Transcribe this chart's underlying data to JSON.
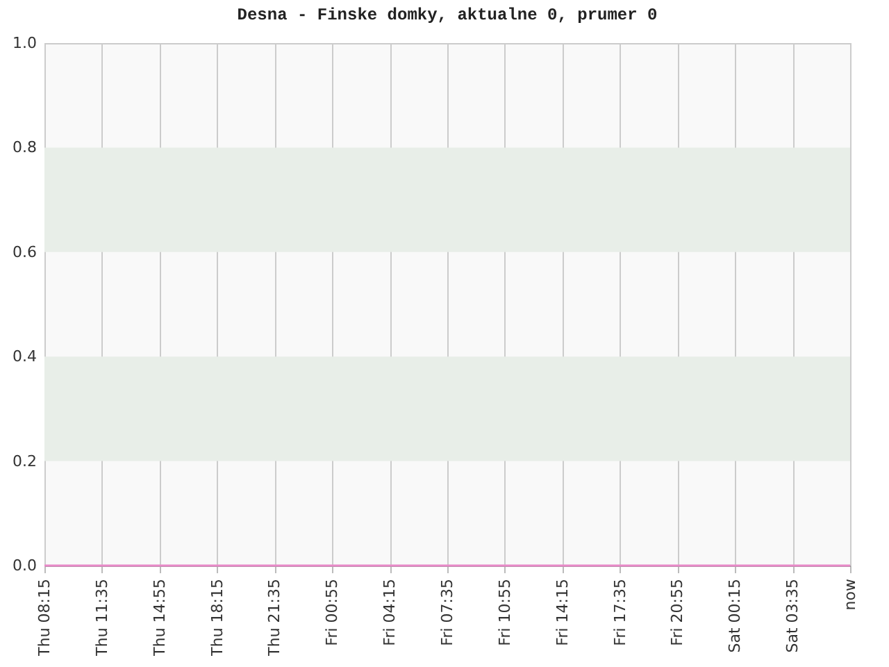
{
  "chart_data": {
    "type": "line",
    "title": "Desna - Finske domky, aktualne 0, prumer 0",
    "categories": [
      "Thu 08:15",
      "Thu 11:35",
      "Thu 14:55",
      "Thu 18:15",
      "Thu 21:35",
      "Fri 00:55",
      "Fri 04:15",
      "Fri 07:35",
      "Fri 10:55",
      "Fri 14:15",
      "Fri 17:35",
      "Fri 20:55",
      "Sat 00:15",
      "Sat 03:35",
      "now"
    ],
    "series": [
      {
        "color": "#e889c8",
        "values": [
          0,
          0,
          0,
          0,
          0,
          0,
          0,
          0,
          0,
          0,
          0,
          0,
          0,
          0,
          0
        ]
      }
    ],
    "ylim": [
      0,
      1
    ],
    "yticks": [
      {
        "value": 0,
        "label": "0.0"
      },
      {
        "value": 0.2,
        "label": "0.2"
      },
      {
        "value": 0.4,
        "label": "0.4"
      },
      {
        "value": 0.6,
        "label": "0.6"
      },
      {
        "value": 0.8,
        "label": "0.8"
      },
      {
        "value": 1,
        "label": "1.0"
      }
    ],
    "bands": [
      {
        "axis": "y",
        "from": 0.2,
        "to": 0.4,
        "color": "#e8eee8"
      },
      {
        "axis": "y",
        "from": 0.6,
        "to": 0.8,
        "color": "#e8eee8"
      }
    ],
    "grid": "x",
    "marker": "none",
    "line_style": "solid"
  }
}
